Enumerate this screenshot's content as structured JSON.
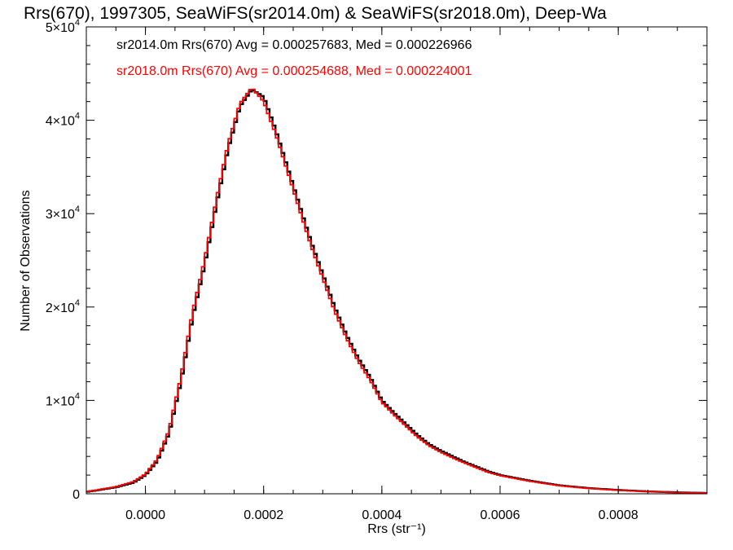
{
  "chart_data": {
    "type": "histogram",
    "title": "Rrs(670), 1997305, SeaWiFS(sr2014.0m) & SeaWiFS(sr2018.0m), Deep-Wa",
    "xlabel": "Rrs (str⁻¹)",
    "ylabel": "Number of Observations",
    "xlim": [
      -0.0001,
      0.00095
    ],
    "ylim": [
      0,
      50000
    ],
    "x_ticks": [
      0.0,
      0.0002,
      0.0004,
      0.0006,
      0.0008
    ],
    "x_tick_labels": [
      "0.0000",
      "0.0002",
      "0.0004",
      "0.0006",
      "0.0008"
    ],
    "y_ticks": [
      0,
      10000,
      20000,
      30000,
      40000,
      50000
    ],
    "y_tick_labels": [
      {
        "mant": "0",
        "exp": ""
      },
      {
        "mant": "1×10",
        "exp": "4"
      },
      {
        "mant": "2×10",
        "exp": "4"
      },
      {
        "mant": "3×10",
        "exp": "4"
      },
      {
        "mant": "4×10",
        "exp": "4"
      },
      {
        "mant": "5×10",
        "exp": "4"
      }
    ],
    "bin_width": 5e-06,
    "annotations": [
      {
        "text": "sr2014.0m Rrs(670) Avg = 0.000257683, Med = 0.000226966",
        "color": "#000000"
      },
      {
        "text": "sr2018.0m Rrs(670) Avg = 0.000254688, Med = 0.000224001",
        "color": "#ff0000"
      }
    ],
    "series": [
      {
        "name": "sr2014.0m",
        "color": "#000000",
        "points": [
          [
            -0.0001,
            200
          ],
          [
            -5e-05,
            700
          ],
          [
            -2e-05,
            1200
          ],
          [
            0.0,
            2000
          ],
          [
            2e-05,
            3500
          ],
          [
            4e-05,
            6500
          ],
          [
            6e-05,
            12000
          ],
          [
            8e-05,
            19000
          ],
          [
            0.0001,
            24500
          ],
          [
            0.00012,
            31000
          ],
          [
            0.00014,
            37000
          ],
          [
            0.00016,
            41500
          ],
          [
            0.00018,
            43300
          ],
          [
            0.0002,
            42500
          ],
          [
            0.00022,
            39000
          ],
          [
            0.00024,
            35000
          ],
          [
            0.00026,
            31000
          ],
          [
            0.00028,
            27000
          ],
          [
            0.0003,
            23500
          ],
          [
            0.00032,
            20000
          ],
          [
            0.00034,
            17000
          ],
          [
            0.00036,
            14500
          ],
          [
            0.00038,
            12500
          ],
          [
            0.0004,
            10000
          ],
          [
            0.00042,
            8700
          ],
          [
            0.00044,
            7500
          ],
          [
            0.00046,
            6300
          ],
          [
            0.00048,
            5300
          ],
          [
            0.0005,
            4600
          ],
          [
            0.00052,
            4000
          ],
          [
            0.00054,
            3400
          ],
          [
            0.00056,
            2900
          ],
          [
            0.00058,
            2400
          ],
          [
            0.0006,
            2000
          ],
          [
            0.00065,
            1400
          ],
          [
            0.0007,
            900
          ],
          [
            0.00075,
            600
          ],
          [
            0.0008,
            400
          ],
          [
            0.00085,
            250
          ],
          [
            0.0009,
            150
          ],
          [
            0.00095,
            80
          ]
        ]
      },
      {
        "name": "sr2018.0m",
        "color": "#ff0000",
        "points": [
          [
            -0.0001,
            220
          ],
          [
            -5e-05,
            750
          ],
          [
            -2e-05,
            1300
          ],
          [
            0.0,
            2100
          ],
          [
            2e-05,
            3700
          ],
          [
            4e-05,
            6800
          ],
          [
            6e-05,
            12500
          ],
          [
            8e-05,
            19500
          ],
          [
            0.0001,
            25000
          ],
          [
            0.00012,
            31500
          ],
          [
            0.00014,
            37500
          ],
          [
            0.00016,
            41800
          ],
          [
            0.00018,
            43500
          ],
          [
            0.0002,
            42000
          ],
          [
            0.00022,
            38600
          ],
          [
            0.00024,
            34600
          ],
          [
            0.00026,
            30600
          ],
          [
            0.00028,
            26600
          ],
          [
            0.0003,
            23100
          ],
          [
            0.00032,
            19600
          ],
          [
            0.00034,
            16700
          ],
          [
            0.00036,
            14200
          ],
          [
            0.00038,
            12200
          ],
          [
            0.0004,
            9800
          ],
          [
            0.00042,
            8500
          ],
          [
            0.00044,
            7300
          ],
          [
            0.00046,
            6100
          ],
          [
            0.00048,
            5150
          ],
          [
            0.0005,
            4450
          ],
          [
            0.00052,
            3850
          ],
          [
            0.00054,
            3300
          ],
          [
            0.00056,
            2800
          ],
          [
            0.00058,
            2300
          ],
          [
            0.0006,
            1950
          ],
          [
            0.00065,
            1350
          ],
          [
            0.0007,
            870
          ],
          [
            0.00075,
            580
          ],
          [
            0.0008,
            380
          ],
          [
            0.00085,
            240
          ],
          [
            0.0009,
            140
          ],
          [
            0.00095,
            75
          ]
        ]
      }
    ]
  }
}
